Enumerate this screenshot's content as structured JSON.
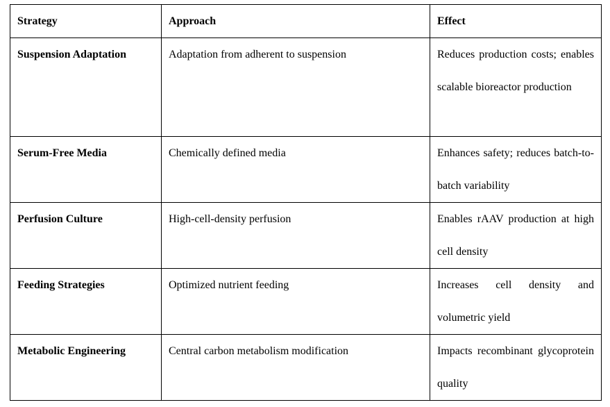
{
  "table": {
    "header": [
      "Strategy",
      "Approach",
      "Effect"
    ],
    "rows": [
      [
        "Suspension Adaptation",
        "Adaptation from adherent to suspension",
        "Reduces production costs; enables scalable bioreactor production"
      ],
      [
        "Serum-Free Media",
        "Chemically defined media",
        "Enhances safety; reduces batch-to-batch variability"
      ],
      [
        "Perfusion Culture",
        "High-cell-density perfusion",
        "Enables rAAV production at high cell density"
      ],
      [
        "Feeding Strategies",
        "Optimized nutrient feeding",
        "Increases cell density and volumetric yield"
      ],
      [
        "Metabolic Engineering",
        "Central carbon metabolism modification",
        "Impacts recombinant glycoprotein quality"
      ]
    ]
  }
}
